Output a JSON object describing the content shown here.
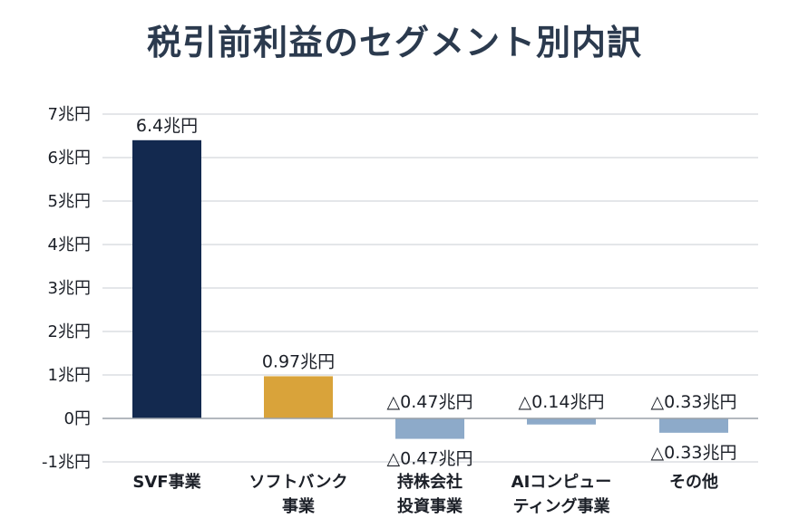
{
  "chart_data": {
    "type": "bar",
    "title": "税引前利益のセグメント別内訳",
    "xlabel": "",
    "ylabel": "",
    "unit": "兆円",
    "ylim": [
      -1,
      7
    ],
    "grid": true,
    "y_ticks": [
      {
        "value": 7,
        "label": "7兆円"
      },
      {
        "value": 6,
        "label": "6兆円"
      },
      {
        "value": 5,
        "label": "5兆円"
      },
      {
        "value": 4,
        "label": "4兆円"
      },
      {
        "value": 3,
        "label": "3兆円"
      },
      {
        "value": 2,
        "label": "2兆円"
      },
      {
        "value": 1,
        "label": "1兆円"
      },
      {
        "value": 0,
        "label": "0円"
      },
      {
        "value": -1,
        "label": "-1兆円"
      }
    ],
    "categories": [
      [
        "SVF事業"
      ],
      [
        "ソフトバンク",
        "事業"
      ],
      [
        "持株会社",
        "投資事業"
      ],
      [
        "AIコンピュー",
        "ティング事業"
      ],
      [
        "その他"
      ]
    ],
    "values": [
      6.4,
      0.97,
      -0.47,
      -0.14,
      -0.33
    ],
    "data_labels": [
      [
        "6.4兆円"
      ],
      [
        "0.97兆円"
      ],
      [
        "△0.47兆円",
        "△0.47兆円"
      ],
      [
        "△0.14兆円"
      ],
      [
        "△0.33兆円",
        "△0.33兆円"
      ]
    ],
    "colors": [
      "#13294f",
      "#d9a33a",
      "#8daac9",
      "#8daac9",
      "#8daac9"
    ],
    "grid_color": "#c9cdd3"
  }
}
